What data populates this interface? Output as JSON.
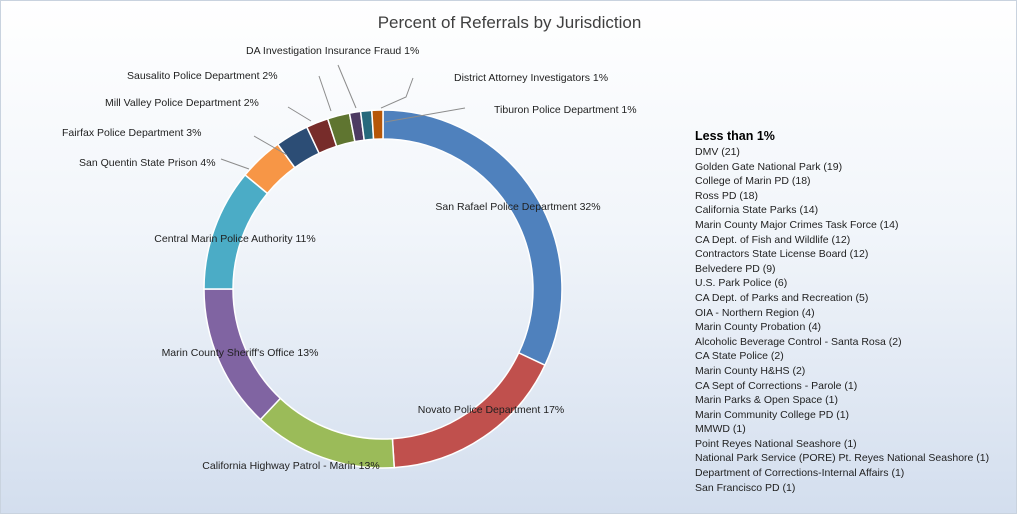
{
  "chart_data": {
    "type": "pie",
    "title": "Percent of Referrals by Jurisdiction",
    "slices": [
      {
        "label": "San Rafael Police Department 32%",
        "value": 32,
        "color": "#4f81bd"
      },
      {
        "label": "Novato Police Department 17%",
        "value": 17,
        "color": "#c0504d"
      },
      {
        "label": "California Highway Patrol - Marin 13%",
        "value": 13,
        "color": "#9bbb59"
      },
      {
        "label": "Marin County Sheriff's Office 13%",
        "value": 13,
        "color": "#8064a2"
      },
      {
        "label": "Central Marin Police Authority 11%",
        "value": 11,
        "color": "#4bacc6"
      },
      {
        "label": "San Quentin State Prison 4%",
        "value": 4,
        "color": "#f79646"
      },
      {
        "label": "Fairfax Police Department 3%",
        "value": 3,
        "color": "#2c4d75"
      },
      {
        "label": "Mill Valley Police Department 2%",
        "value": 2,
        "color": "#772c2a"
      },
      {
        "label": "Sausalito Police Department 2%",
        "value": 2,
        "color": "#5f7530"
      },
      {
        "label": "DA Investigation Insurance Fraud 1%",
        "value": 1,
        "color": "#4d3b62"
      },
      {
        "label": "District Attorney Investigators 1%",
        "value": 1,
        "color": "#276a7c"
      },
      {
        "label": "Tiburon Police Department 1%",
        "value": 1,
        "color": "#b65708"
      }
    ]
  },
  "note": {
    "title": "Less than 1%",
    "items": [
      "DMV (21)",
      "Golden Gate National Park (19)",
      "College of Marin PD (18)",
      "Ross PD (18)",
      "California State Parks (14)",
      "Marin County Major Crimes Task Force (14)",
      "CA Dept. of Fish and Wildlife (12)",
      "Contractors State License Board (12)",
      "Belvedere PD (9)",
      "U.S. Park Police (6)",
      "CA Dept. of Parks and Recreation (5)",
      "OIA - Northern Region (4)",
      "Marin County Probation (4)",
      "Alcoholic Beverage Control - Santa Rosa (2)",
      "CA State Police (2)",
      "Marin County H&HS (2)",
      "CA Sept of Corrections - Parole (1)",
      "Marin Parks & Open Space (1)",
      "Marin Community College PD (1)",
      "MMWD (1)",
      "Point Reyes National Seashore (1)",
      "National Park Service (PORE) Pt. Reyes National Seashore (1)",
      "Department of Corrections-Internal Affairs (1)",
      "San Francisco PD (1)"
    ]
  }
}
